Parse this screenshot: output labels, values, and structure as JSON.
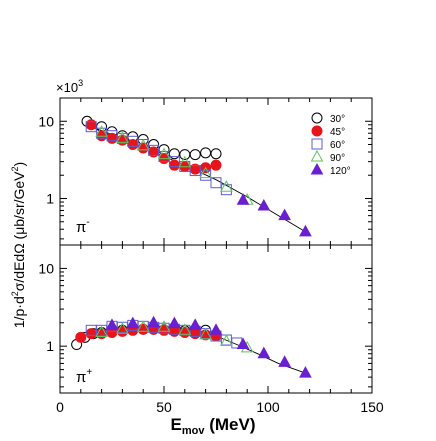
{
  "chart_data": {
    "type": "scatter",
    "scale_label": "×10",
    "scale_exponent": "3",
    "ylabel_parts": {
      "a": "1/p",
      "b": "·d",
      "c": "2",
      "d": "σ/dEdΩ (μb/sr/GeV",
      "e": "2",
      "f": ")"
    },
    "xlabel_main": "E",
    "xlabel_sub": "mov",
    "xlabel_unit": " (MeV)",
    "xlim": [
      0,
      150
    ],
    "x_ticks": [
      "0",
      "50",
      "100",
      "150"
    ],
    "x_tick_values": [
      0,
      50,
      100,
      150
    ],
    "y_scale": "log",
    "ylim": [
      0.25,
      20
    ],
    "y_ticks": [
      "1",
      "10"
    ],
    "y_tick_values": [
      1,
      10
    ],
    "legend": [
      {
        "label": "30°",
        "marker": "circle-open",
        "color": "#000000"
      },
      {
        "label": "45°",
        "marker": "circle-filled",
        "color": "#e8141c"
      },
      {
        "label": "60°",
        "marker": "square-open",
        "color": "#5c5cd6"
      },
      {
        "label": "90°",
        "marker": "triangle-open",
        "color": "#5fc35f"
      },
      {
        "label": "120°",
        "marker": "triangle-filled",
        "color": "#6a1fd0"
      }
    ],
    "legend_position": "top-right",
    "panels": [
      {
        "label_main": "π",
        "label_sup": "-",
        "series": [
          {
            "name": "30°",
            "x": [
              13,
              20,
              25,
              30,
              35,
              40,
              45,
              50,
              55,
              60,
              65,
              70,
              75
            ],
            "y": [
              10.0,
              8.5,
              7.3,
              6.5,
              6.3,
              5.8,
              5.0,
              4.3,
              3.8,
              3.7,
              3.7,
              3.9,
              3.8
            ]
          },
          {
            "name": "45°",
            "x": [
              15,
              20,
              25,
              30,
              35,
              40,
              45,
              50,
              55,
              60,
              65,
              70,
              75
            ],
            "y": [
              9.0,
              6.5,
              6.0,
              5.7,
              5.0,
              4.5,
              4.0,
              3.3,
              2.7,
              2.6,
              2.4,
              2.5,
              2.7
            ]
          },
          {
            "name": "60°",
            "x": [
              15,
              20,
              25,
              30,
              35,
              40,
              45,
              50,
              55,
              60,
              65,
              70,
              75,
              80
            ],
            "y": [
              8.5,
              7.0,
              6.5,
              6.0,
              5.5,
              5.0,
              4.2,
              3.5,
              3.0,
              2.6,
              2.3,
              2.0,
              1.6,
              1.3
            ]
          },
          {
            "name": "90°",
            "x": [
              20,
              30,
              40,
              50,
              60,
              70,
              80,
              90
            ],
            "y": [
              7.2,
              6.0,
              4.8,
              3.7,
              2.9,
              2.1,
              1.4,
              0.95
            ]
          },
          {
            "name": "120°",
            "x": [
              88,
              98,
              108,
              118
            ],
            "y": [
              0.95,
              0.8,
              0.6,
              0.37
            ]
          }
        ],
        "fit": {
          "x": [
            15,
            30,
            45,
            60,
            75,
            90,
            105,
            118
          ],
          "y": [
            8.5,
            6.0,
            4.0,
            2.7,
            1.75,
            1.05,
            0.6,
            0.37
          ]
        }
      },
      {
        "label_main": "π",
        "label_sup": "+",
        "series": [
          {
            "name": "30°",
            "x": [
              8,
              12,
              16,
              20,
              25,
              30,
              35,
              40,
              45,
              50,
              55,
              60,
              65,
              70
            ],
            "y": [
              1.05,
              1.3,
              1.45,
              1.5,
              1.55,
              1.6,
              1.62,
              1.65,
              1.65,
              1.62,
              1.6,
              1.58,
              1.55,
              1.6
            ]
          },
          {
            "name": "45°",
            "x": [
              10,
              15,
              20,
              25,
              30,
              35,
              40,
              45,
              50,
              55,
              60,
              65,
              70,
              75
            ],
            "y": [
              1.3,
              1.45,
              1.45,
              1.5,
              1.55,
              1.6,
              1.65,
              1.65,
              1.6,
              1.55,
              1.5,
              1.45,
              1.4,
              1.35
            ]
          },
          {
            "name": "60°",
            "x": [
              15,
              20,
              25,
              30,
              35,
              40,
              45,
              50,
              55,
              60,
              65,
              70,
              75,
              80,
              85
            ],
            "y": [
              1.6,
              1.6,
              1.8,
              1.75,
              1.85,
              1.8,
              1.75,
              1.7,
              1.65,
              1.6,
              1.55,
              1.45,
              1.35,
              1.2,
              1.1
            ]
          },
          {
            "name": "90°",
            "x": [
              20,
              30,
              40,
              50,
              60,
              70,
              80,
              90
            ],
            "y": [
              1.5,
              1.65,
              1.75,
              1.75,
              1.6,
              1.4,
              1.15,
              0.95
            ]
          },
          {
            "name": "120°",
            "x": [
              25,
              35,
              45,
              55,
              65,
              75,
              88,
              98,
              108,
              118
            ],
            "y": [
              1.85,
              1.95,
              2.0,
              1.95,
              1.85,
              1.6,
              1.05,
              0.8,
              0.62,
              0.45
            ]
          }
        ],
        "fit": {
          "x": [
            8,
            15,
            25,
            35,
            45,
            55,
            65,
            75,
            85,
            95,
            105,
            118
          ],
          "y": [
            1.25,
            1.45,
            1.6,
            1.75,
            1.8,
            1.75,
            1.6,
            1.35,
            1.05,
            0.8,
            0.6,
            0.45
          ]
        }
      }
    ]
  }
}
